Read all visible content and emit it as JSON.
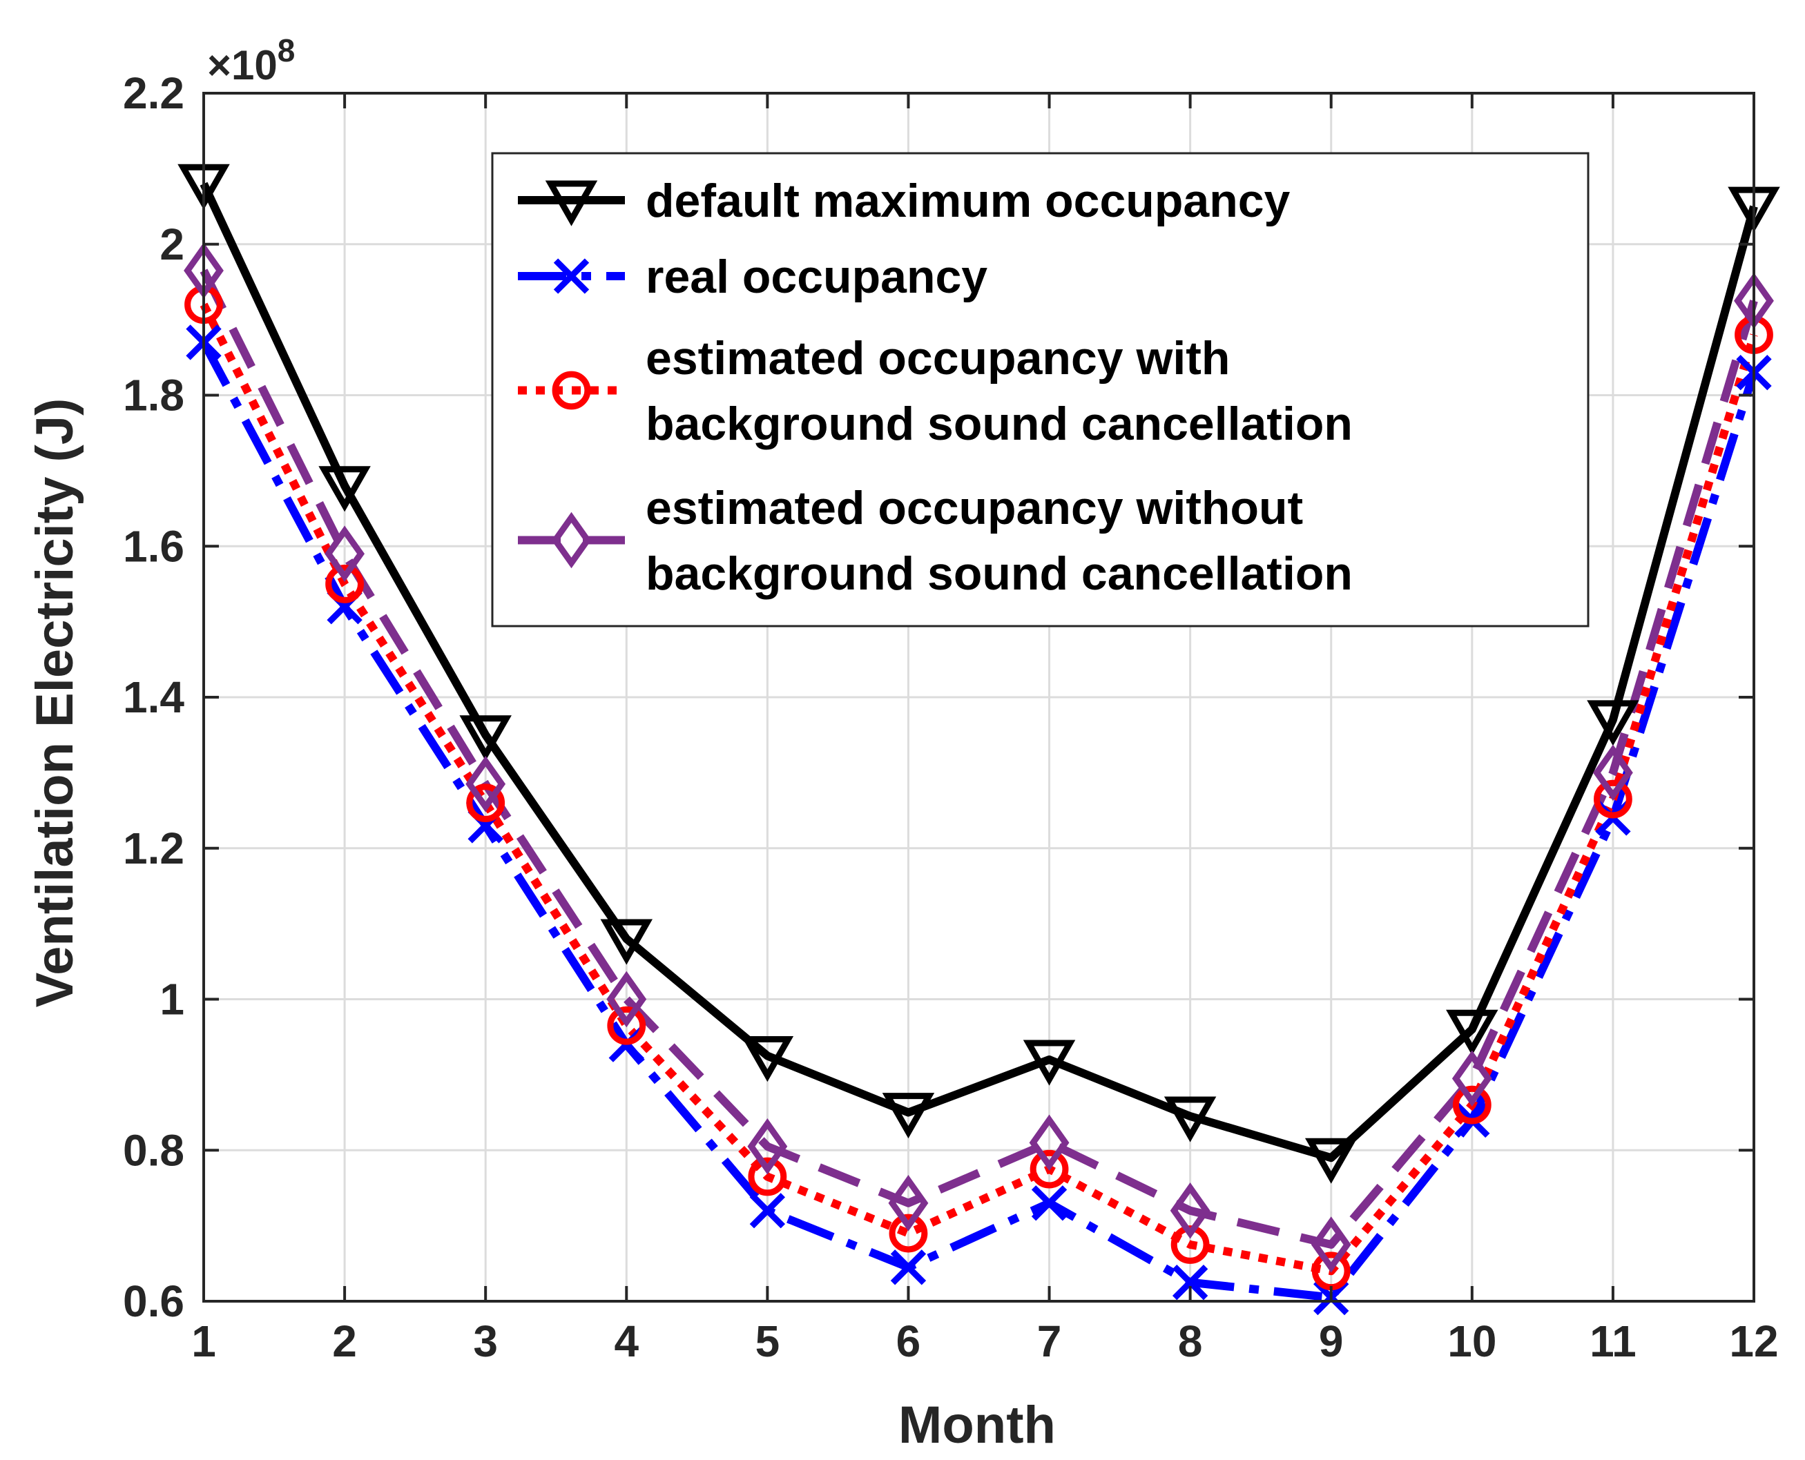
{
  "chart_data": {
    "type": "line",
    "xlabel": "Month",
    "ylabel": "Ventilation Electricity (J)",
    "y_exponent_label": "×10",
    "y_exponent_power": "8",
    "xlim": [
      1,
      12
    ],
    "ylim": [
      0.6,
      2.2
    ],
    "grid": true,
    "legend_position": "top-center",
    "x": [
      1,
      2,
      3,
      4,
      5,
      6,
      7,
      8,
      9,
      10,
      11,
      12
    ],
    "x_tick_labels": [
      "1",
      "2",
      "3",
      "4",
      "5",
      "6",
      "7",
      "8",
      "9",
      "10",
      "11",
      "12"
    ],
    "y_ticks": [
      0.6,
      0.8,
      1.0,
      1.2,
      1.4,
      1.6,
      1.8,
      2.0,
      2.2
    ],
    "y_tick_labels": [
      "0.6",
      "0.8",
      "1",
      "1.2",
      "1.4",
      "1.6",
      "1.8",
      "2",
      "2.2"
    ],
    "series": [
      {
        "name": "default maximum occupancy",
        "legend_lines": [
          "default maximum occupancy"
        ],
        "color": "#000000",
        "dash": "solid",
        "marker": "triangle-down",
        "values": [
          2.08,
          1.68,
          1.35,
          1.08,
          0.925,
          0.85,
          0.92,
          0.845,
          0.79,
          0.96,
          1.37,
          2.05
        ]
      },
      {
        "name": "real occupancy",
        "legend_lines": [
          "real occupancy"
        ],
        "color": "#0000ff",
        "dash": "dashdot",
        "marker": "x",
        "values": [
          1.87,
          1.52,
          1.23,
          0.94,
          0.72,
          0.645,
          0.73,
          0.625,
          0.605,
          0.84,
          1.24,
          1.83
        ]
      },
      {
        "name": "estimated occupancy with background sound cancellation",
        "legend_lines": [
          "estimated occupancy with",
          "background sound cancellation"
        ],
        "color": "#ff0000",
        "dash": "dotted",
        "marker": "circle",
        "values": [
          1.92,
          1.55,
          1.26,
          0.965,
          0.765,
          0.69,
          0.775,
          0.675,
          0.64,
          0.86,
          1.265,
          1.88
        ]
      },
      {
        "name": "estimated occupancy without background sound cancellation",
        "legend_lines": [
          "estimated occupancy without",
          "background sound cancellation"
        ],
        "color": "#7e2f8e",
        "dash": "dashed",
        "marker": "diamond",
        "values": [
          1.965,
          1.59,
          1.285,
          1.0,
          0.805,
          0.73,
          0.81,
          0.72,
          0.675,
          0.895,
          1.3,
          1.925
        ]
      }
    ]
  }
}
